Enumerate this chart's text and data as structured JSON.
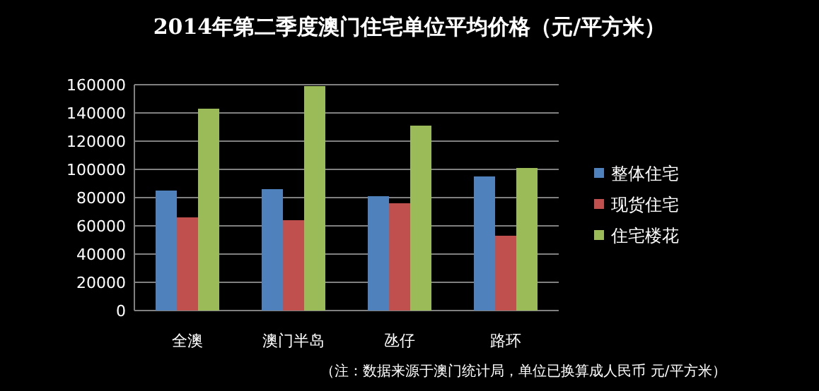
{
  "chart_data": {
    "type": "bar",
    "title": "2014年第二季度澳门住宅单位平均价格（元/平方米）",
    "categories": [
      "全澳",
      "澳门半岛",
      "氹仔",
      "路环"
    ],
    "series": [
      {
        "name": "整体住宅",
        "color": "#4f81bd",
        "values": [
          85000,
          86000,
          81000,
          95000
        ]
      },
      {
        "name": "现货住宅",
        "color": "#c0504d",
        "values": [
          66000,
          64000,
          76000,
          53000
        ]
      },
      {
        "name": "住宅楼花",
        "color": "#9bbb59",
        "values": [
          143000,
          159000,
          131000,
          101000
        ]
      }
    ],
    "ylim": [
      0,
      160000
    ],
    "yticks": [
      0,
      20000,
      40000,
      60000,
      80000,
      100000,
      120000,
      140000,
      160000
    ],
    "grid": "y",
    "legend": "right",
    "annotations": [
      "（注：数据来源于澳门统计局，单位已换算成人民币 元/平方米）"
    ]
  }
}
